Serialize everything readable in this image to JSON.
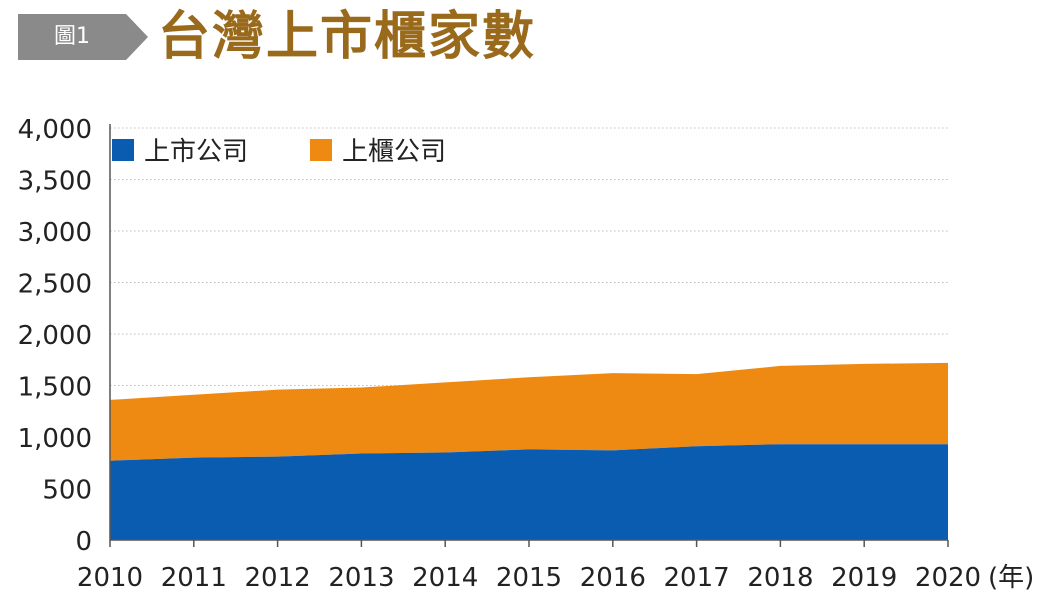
{
  "header": {
    "figure_label": "圖1",
    "title": "台灣上市櫃家數"
  },
  "colors": {
    "listed": "#0a5cb0",
    "otc": "#ee8a12",
    "title": "#9a6a1c",
    "badge": "#8a8a8a",
    "grid": "#bdbdbd",
    "axis": "#555555"
  },
  "chart_data": {
    "type": "area",
    "stacked": true,
    "title": "台灣上市櫃家數",
    "x_unit_label": "(年)",
    "x": [
      2010,
      2011,
      2012,
      2013,
      2014,
      2015,
      2016,
      2017,
      2018,
      2019,
      2020
    ],
    "x_labels": [
      "2010",
      "2011",
      "2012",
      "2013",
      "2014",
      "2015",
      "2016",
      "2017",
      "2018",
      "2019",
      "2020"
    ],
    "y_ticks": [
      0,
      500,
      1000,
      1500,
      2000,
      2500,
      3000,
      3500,
      4000
    ],
    "y_tick_labels": [
      "0",
      "500",
      "1,000",
      "1,500",
      "2,000",
      "2,500",
      "3,000",
      "3,500",
      "4,000"
    ],
    "ylim": [
      0,
      4000
    ],
    "grid": true,
    "legend_position": "top-left",
    "series": [
      {
        "name": "上市公司",
        "values": [
          770,
          800,
          810,
          840,
          850,
          880,
          870,
          910,
          930,
          930,
          930
        ]
      },
      {
        "name": "上櫃公司",
        "values": [
          590,
          610,
          650,
          640,
          680,
          700,
          750,
          700,
          760,
          780,
          790
        ]
      }
    ]
  }
}
